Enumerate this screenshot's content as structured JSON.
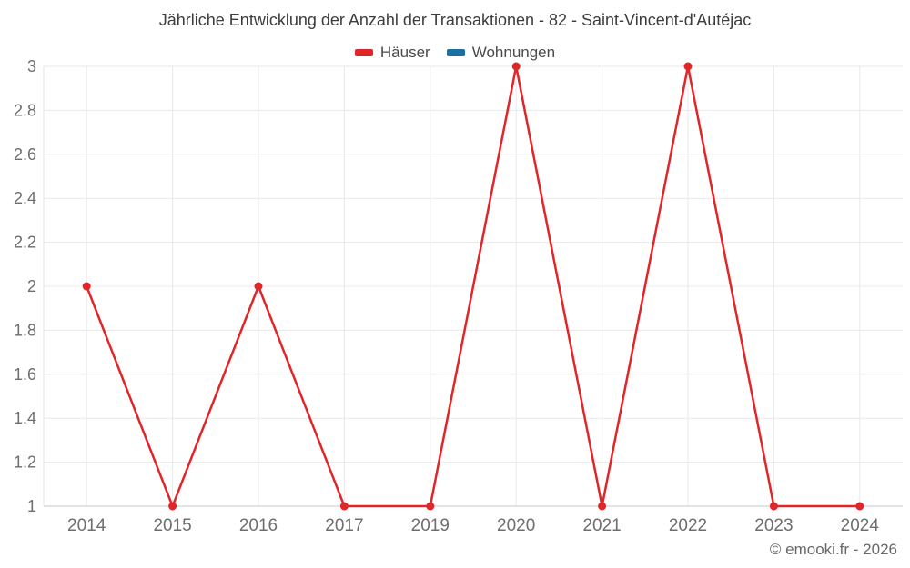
{
  "footer": {
    "copyright": "© emooki.fr - 2026"
  },
  "chart_data": {
    "type": "line",
    "title": "Jährliche Entwicklung der Anzahl der Transaktionen - 82 - Saint-Vincent-d'Autéjac",
    "categories": [
      "2014",
      "2015",
      "2016",
      "2017",
      "2019",
      "2020",
      "2021",
      "2022",
      "2023",
      "2024"
    ],
    "series": [
      {
        "name": "Häuser",
        "color": "#e02629",
        "values": [
          2,
          1,
          2,
          1,
          1,
          3,
          1,
          3,
          1,
          1
        ]
      },
      {
        "name": "Wohnungen",
        "color": "#1c6fa4",
        "values": []
      }
    ],
    "xlabel": "",
    "ylabel": "",
    "ylim": [
      1,
      3
    ],
    "yticks": [
      "1",
      "1.2",
      "1.4",
      "1.6",
      "1.8",
      "2",
      "2.2",
      "2.4",
      "2.6",
      "2.8",
      "3"
    ],
    "grid": true,
    "legend_position": "top",
    "marker_radius": 4.5,
    "line_width": 2.5,
    "colors": {
      "grid": "#e9e9e9",
      "axis_x": "#c9c9c9",
      "axis_y": "#e3e3e3",
      "tick_text": "#6e6e6e"
    }
  }
}
